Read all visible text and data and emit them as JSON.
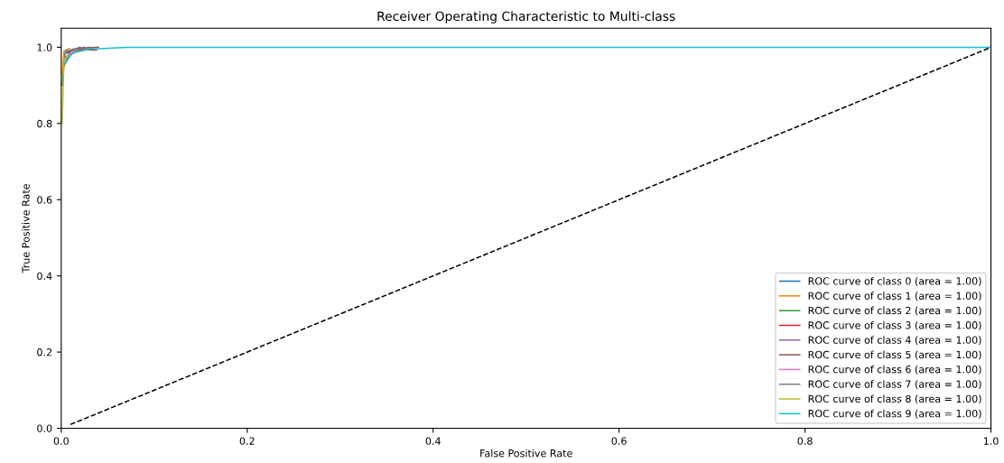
{
  "chart_data": {
    "type": "line",
    "title": "Receiver Operating Characteristic to Multi-class",
    "xlabel": "False Positive Rate",
    "ylabel": "True Positive Rate",
    "xlim": [
      0,
      1
    ],
    "ylim": [
      0,
      1.05
    ],
    "xticks": [
      {
        "value": 0,
        "label": "0.0"
      },
      0.2,
      0.4,
      0.6,
      0.8,
      {
        "value": 1,
        "label": "1.0"
      }
    ],
    "yticks": [
      {
        "value": 0,
        "label": "0.0"
      },
      0.2,
      0.4,
      0.6,
      0.8,
      {
        "value": 1,
        "label": "1.0"
      }
    ],
    "legend": "bottom right",
    "grid": false,
    "series": [
      {
        "name": "ROC curve of class 0 (area = 1.00)",
        "color": "#1f77b4",
        "x": [
          0.001,
          0.004,
          0.02
        ],
        "values": [
          0.9,
          0.985,
          1
        ]
      },
      {
        "name": "ROC curve of class 1 (area = 1.00)",
        "color": "#ff7f0e",
        "x": [
          0.001,
          0.003,
          0.009
        ],
        "values": [
          0.93,
          0.99,
          0.997
        ]
      },
      {
        "name": "ROC curve of class 2 (area = 1.00)",
        "color": "#2ca02c",
        "x": [
          0.003,
          0.01,
          0.03
        ],
        "values": [
          0.95,
          0.99,
          1
        ]
      },
      {
        "name": "ROC curve of class 3 (area = 1.00)",
        "color": "#d62728",
        "x": [
          0.005,
          0.02,
          0.038
        ],
        "values": [
          0.975,
          0.993,
          0.993
        ]
      },
      {
        "name": "ROC curve of class 4 (area = 1.00)",
        "color": "#9467bd",
        "x": [
          0.004,
          0.012,
          0.025
        ],
        "values": [
          0.97,
          0.995,
          1
        ]
      },
      {
        "name": "ROC curve of class 5 (area = 1.00)",
        "color": "#8c564b",
        "x": [
          0.006,
          0.018,
          0.04
        ],
        "values": [
          0.985,
          0.997,
          1
        ]
      },
      {
        "name": "ROC curve of class 6 (area = 1.00)",
        "color": "#e377c2",
        "x": [
          0.002,
          0.008,
          0.015
        ],
        "values": [
          0.96,
          0.98,
          0.99
        ]
      },
      {
        "name": "ROC curve of class 7 (area = 1.00)",
        "color": "#7f7f7f",
        "x": [
          0.004,
          0.015,
          0.035
        ],
        "values": [
          0.99,
          0.995,
          0.997
        ]
      },
      {
        "name": "ROC curve of class 8 (area = 1.00)",
        "color": "#bcbd22",
        "x": [
          0.001,
          0.003,
          0.008
        ],
        "values": [
          0.8,
          0.97,
          0.98
        ]
      },
      {
        "name": "ROC curve of class 9 (area = 1.00)",
        "color": "#17becf",
        "x": [
          0.005,
          0.012,
          0.03,
          0.07,
          1
        ],
        "values": [
          0.96,
          0.985,
          0.995,
          1,
          1
        ]
      },
      {
        "color": "#000000",
        "line_style": "dashed",
        "x": [
          0.01,
          1
        ],
        "values": [
          0.01,
          1
        ]
      }
    ]
  }
}
